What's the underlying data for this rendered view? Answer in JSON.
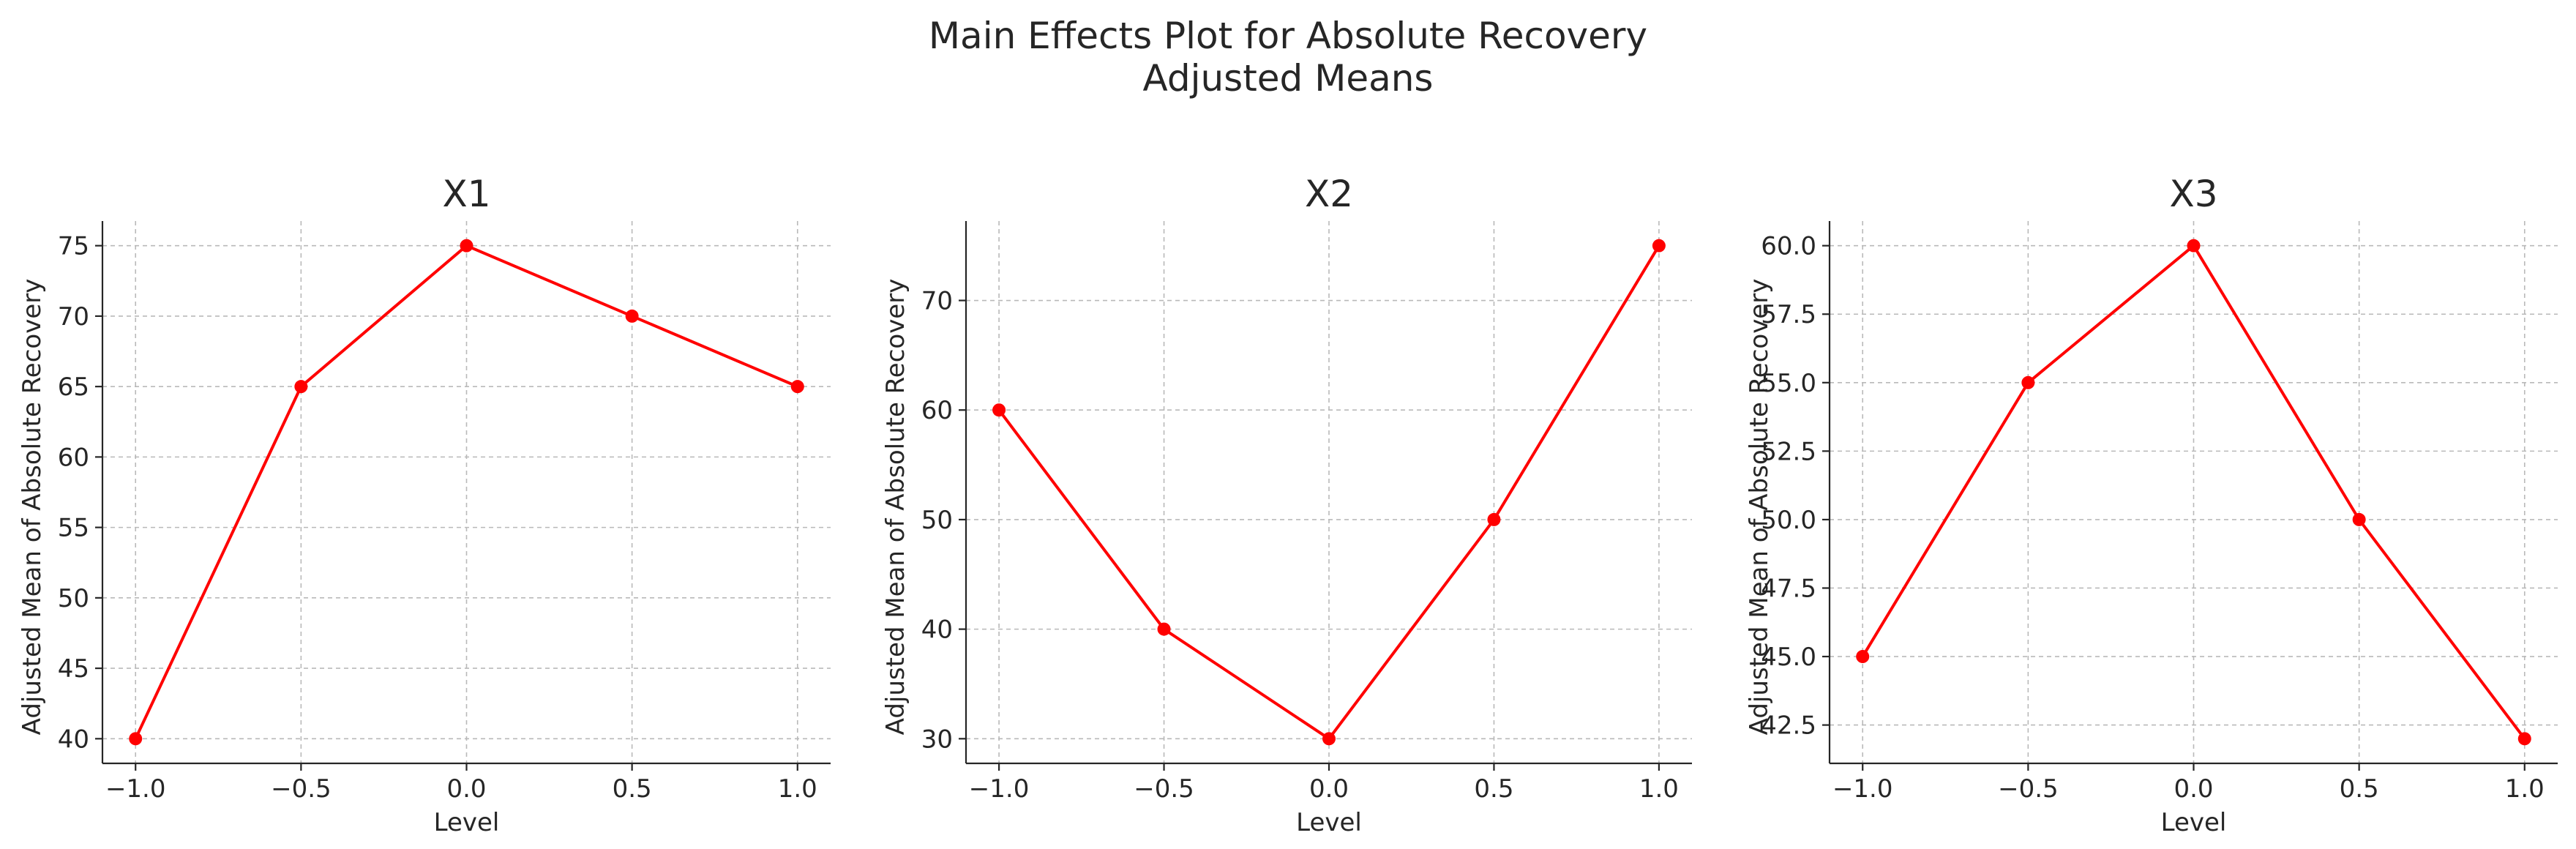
{
  "figure": {
    "title_line1": "Main Effects Plot for Absolute Recovery",
    "title_line2": "Adjusted Means"
  },
  "colors": {
    "series": "#ff0000"
  },
  "chart_data": [
    {
      "type": "line",
      "title": "X1",
      "xlabel": "Level",
      "ylabel": "Adjusted Mean of Absolute Recovery",
      "x": [
        -1.0,
        -0.5,
        0.0,
        0.5,
        1.0
      ],
      "values": [
        40,
        65,
        75,
        70,
        65
      ],
      "xlim": [
        -1.1,
        1.1
      ],
      "ylim": [
        38.25,
        76.75
      ],
      "xticks": [
        "−1.0",
        "−0.5",
        "0.0",
        "0.5",
        "1.0"
      ],
      "yticks": [
        "40",
        "45",
        "50",
        "55",
        "60",
        "65",
        "70",
        "75"
      ],
      "ytick_values": [
        40,
        45,
        50,
        55,
        60,
        65,
        70,
        75
      ],
      "grid": true,
      "marker": "circle"
    },
    {
      "type": "line",
      "title": "X2",
      "xlabel": "Level",
      "ylabel": "Adjusted Mean of Absolute Recovery",
      "x": [
        -1.0,
        -0.5,
        0.0,
        0.5,
        1.0
      ],
      "values": [
        60,
        40,
        30,
        50,
        75
      ],
      "xlim": [
        -1.1,
        1.1
      ],
      "ylim": [
        27.75,
        77.25
      ],
      "xticks": [
        "−1.0",
        "−0.5",
        "0.0",
        "0.5",
        "1.0"
      ],
      "yticks": [
        "30",
        "40",
        "50",
        "60",
        "70"
      ],
      "ytick_values": [
        30,
        40,
        50,
        60,
        70
      ],
      "grid": true,
      "marker": "circle"
    },
    {
      "type": "line",
      "title": "X3",
      "xlabel": "Level",
      "ylabel": "Adjusted Mean of Absolute Recovery",
      "x": [
        -1.0,
        -0.5,
        0.0,
        0.5,
        1.0
      ],
      "values": [
        45,
        55,
        60,
        50,
        42
      ],
      "xlim": [
        -1.1,
        1.1
      ],
      "ylim": [
        41.1,
        60.9
      ],
      "xticks": [
        "−1.0",
        "−0.5",
        "0.0",
        "0.5",
        "1.0"
      ],
      "yticks": [
        "42.5",
        "45.0",
        "47.5",
        "50.0",
        "52.5",
        "55.0",
        "57.5",
        "60.0"
      ],
      "ytick_values": [
        42.5,
        45.0,
        47.5,
        50.0,
        52.5,
        55.0,
        57.5,
        60.0
      ],
      "grid": true,
      "marker": "circle"
    }
  ]
}
